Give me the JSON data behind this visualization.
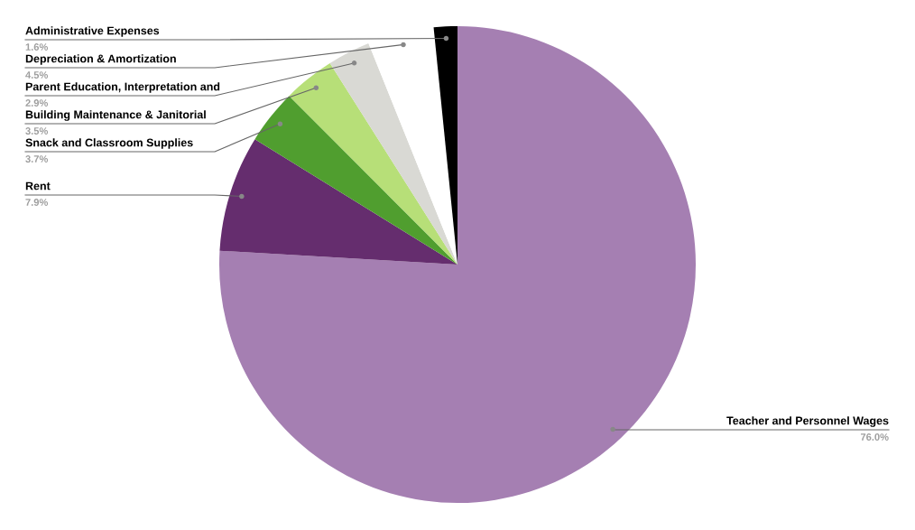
{
  "chart_data": {
    "type": "pie",
    "categories": [
      "Teacher and Personnel Wages",
      "Rent",
      "Snack and Classroom Supplies",
      "Building Maintenance & Janitorial",
      "Parent Education, Interpretation and",
      "Depreciation & Amortization",
      "Administrative Expenses"
    ],
    "values": [
      76.0,
      7.9,
      3.7,
      3.5,
      2.9,
      4.5,
      1.6
    ],
    "colors": [
      "#a57fb2",
      "#652d6e",
      "#509e2f",
      "#b7df78",
      "#d9d9d4",
      "#ffffff",
      "#000000"
    ],
    "value_labels": [
      "76.0%",
      "7.9%",
      "3.7%",
      "3.5%",
      "2.9%",
      "4.5%",
      "1.6%"
    ],
    "legend": false
  }
}
